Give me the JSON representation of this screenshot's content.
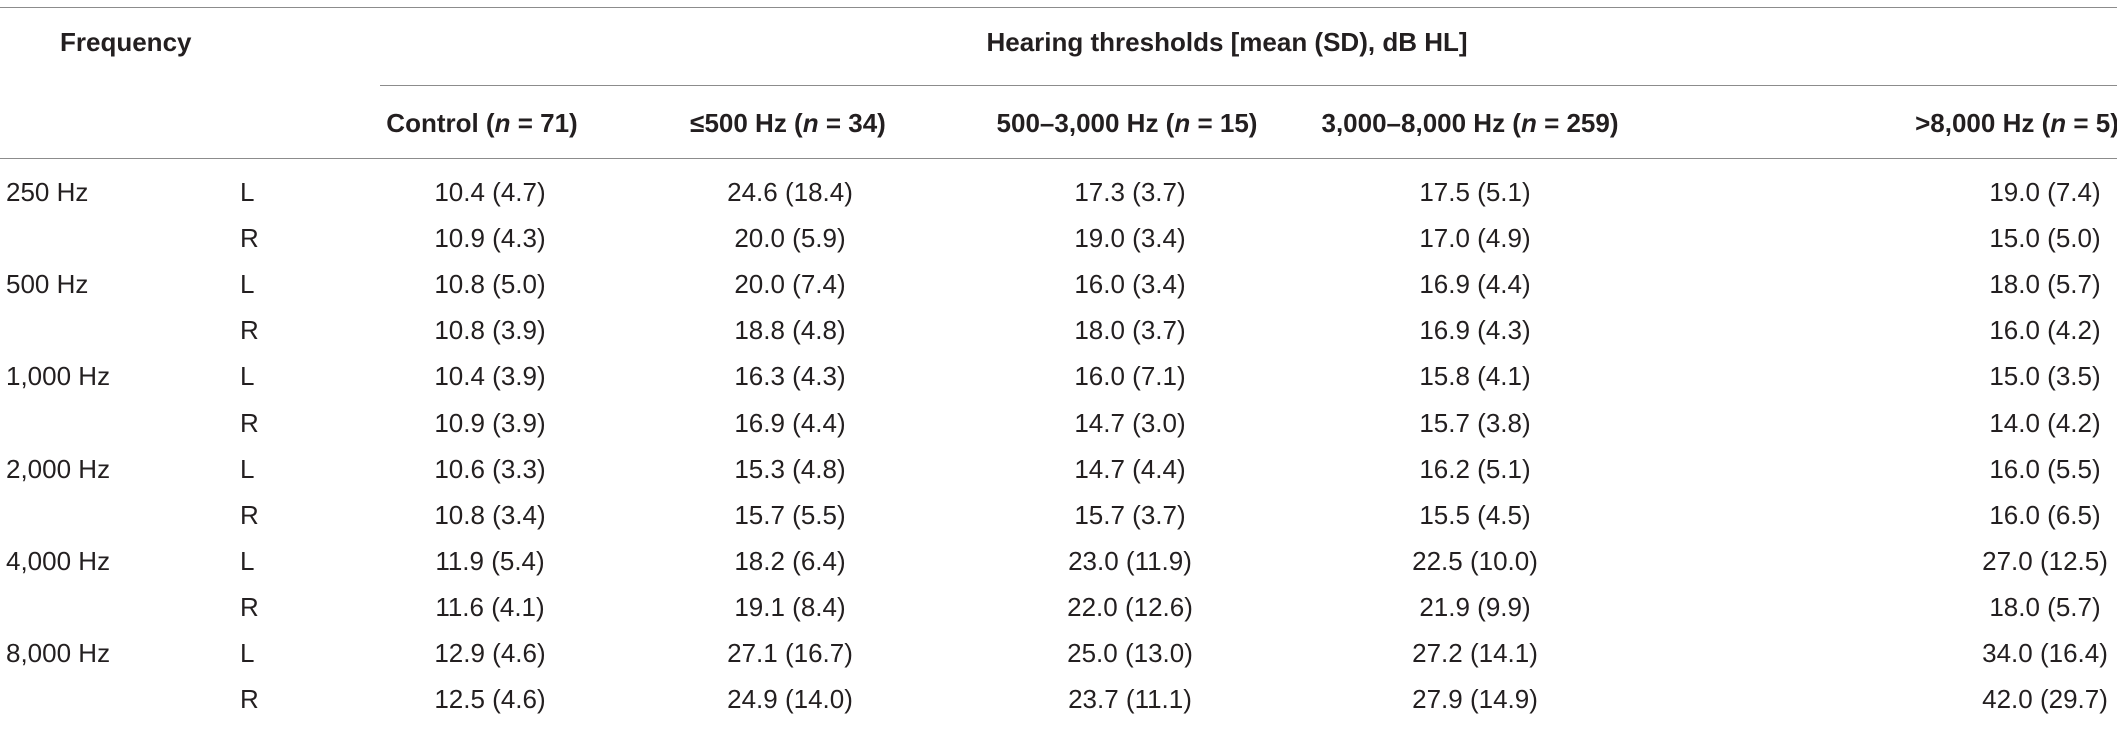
{
  "table": {
    "frequency_header": "Frequency",
    "span_header": "Hearing thresholds [mean (SD), dB HL]",
    "columns": [
      {
        "pre": "Control (",
        "n": "n",
        "post": " = 71)"
      },
      {
        "pre": "≤500 Hz (",
        "n": "n",
        "post": " = 34)"
      },
      {
        "pre": "500–3,000 Hz (",
        "n": "n",
        "post": " = 15)"
      },
      {
        "pre": "3,000–8,000 Hz (",
        "n": "n",
        "post": " = 259)"
      },
      {
        "pre": ">8,000 Hz (",
        "n": "n",
        "post": " = 5)"
      }
    ],
    "rows": [
      {
        "freq": "250 Hz",
        "ear": "L",
        "values": [
          "10.4 (4.7)",
          "24.6 (18.4)",
          "17.3 (3.7)",
          "17.5 (5.1)",
          "19.0 (7.4)"
        ]
      },
      {
        "freq": "",
        "ear": "R",
        "values": [
          "10.9 (4.3)",
          "20.0 (5.9)",
          "19.0 (3.4)",
          "17.0 (4.9)",
          "15.0 (5.0)"
        ]
      },
      {
        "freq": "500 Hz",
        "ear": "L",
        "values": [
          "10.8 (5.0)",
          "20.0 (7.4)",
          "16.0 (3.4)",
          "16.9 (4.4)",
          "18.0 (5.7)"
        ]
      },
      {
        "freq": "",
        "ear": "R",
        "values": [
          "10.8 (3.9)",
          "18.8 (4.8)",
          "18.0 (3.7)",
          "16.9 (4.3)",
          "16.0 (4.2)"
        ]
      },
      {
        "freq": "1,000 Hz",
        "ear": "L",
        "values": [
          "10.4 (3.9)",
          "16.3 (4.3)",
          "16.0 (7.1)",
          "15.8 (4.1)",
          "15.0 (3.5)"
        ]
      },
      {
        "freq": "",
        "ear": "R",
        "values": [
          "10.9 (3.9)",
          "16.9 (4.4)",
          "14.7 (3.0)",
          "15.7 (3.8)",
          "14.0 (4.2)"
        ]
      },
      {
        "freq": "2,000 Hz",
        "ear": "L",
        "values": [
          "10.6 (3.3)",
          "15.3 (4.8)",
          "14.7 (4.4)",
          "16.2 (5.1)",
          "16.0 (5.5)"
        ]
      },
      {
        "freq": "",
        "ear": "R",
        "values": [
          "10.8 (3.4)",
          "15.7 (5.5)",
          "15.7 (3.7)",
          "15.5 (4.5)",
          "16.0 (6.5)"
        ]
      },
      {
        "freq": "4,000 Hz",
        "ear": "L",
        "values": [
          "11.9 (5.4)",
          "18.2 (6.4)",
          "23.0 (11.9)",
          "22.5 (10.0)",
          "27.0 (12.5)"
        ]
      },
      {
        "freq": "",
        "ear": "R",
        "values": [
          "11.6 (4.1)",
          "19.1 (8.4)",
          "22.0 (12.6)",
          "21.9 (9.9)",
          "18.0 (5.7)"
        ]
      },
      {
        "freq": "8,000 Hz",
        "ear": "L",
        "values": [
          "12.9 (4.6)",
          "27.1 (16.7)",
          "25.0 (13.0)",
          "27.2 (14.1)",
          "34.0 (16.4)"
        ]
      },
      {
        "freq": "",
        "ear": "R",
        "values": [
          "12.5 (4.6)",
          "24.9 (14.0)",
          "23.7 (11.1)",
          "27.9 (14.9)",
          "42.0 (29.7)"
        ]
      }
    ]
  }
}
